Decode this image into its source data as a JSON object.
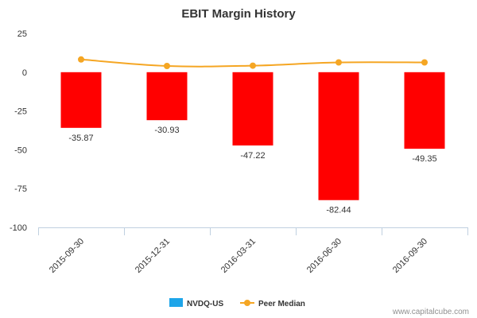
{
  "chart_data": {
    "type": "bar",
    "title": "EBIT Margin History",
    "categories": [
      "2015-09-30",
      "2015-12-31",
      "2016-03-31",
      "2016-06-30",
      "2016-09-30"
    ],
    "series": [
      {
        "name": "NVDQ-US",
        "type": "bar",
        "values": [
          -35.87,
          -30.93,
          -47.22,
          -82.44,
          -49.35
        ],
        "labels": [
          "-35.87",
          "-30.93",
          "-47.22",
          "-82.44",
          "-49.35"
        ],
        "bar_color": "#ff0000",
        "legend_color": "#1ea5e9"
      },
      {
        "name": "Peer Median",
        "type": "line",
        "values": [
          8.2,
          4.0,
          4.2,
          6.3,
          6.3
        ],
        "color": "#f5a623"
      }
    ],
    "yticks": [
      "25",
      "0",
      "-25",
      "-50",
      "-75",
      "-100"
    ],
    "ytick_values": [
      25,
      0,
      -25,
      -50,
      -75,
      -100
    ],
    "ylim": [
      -100,
      25
    ],
    "xlabel": "",
    "ylabel": "",
    "grid": false,
    "legend_position": "bottom-center",
    "credit": "www.capitalcube.com"
  }
}
